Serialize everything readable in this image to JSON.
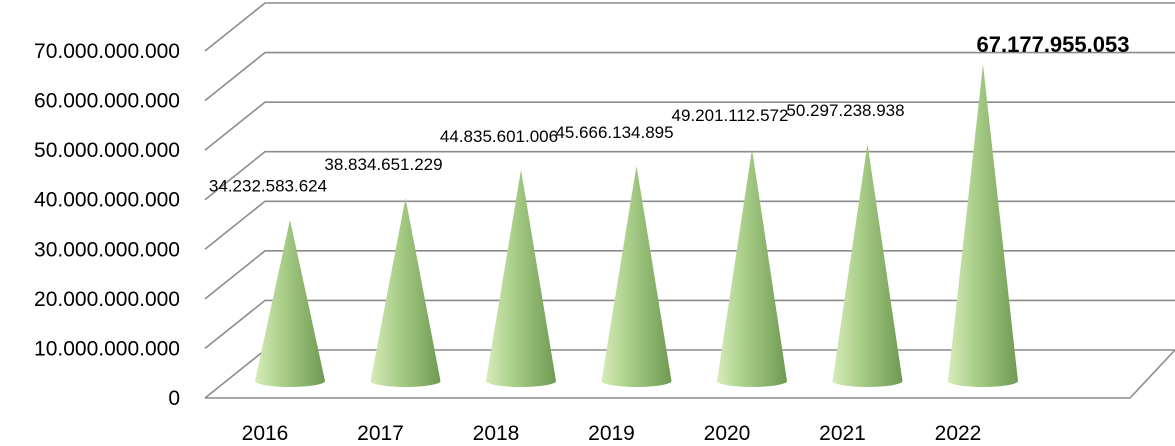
{
  "chart_data": {
    "type": "bar",
    "subtype": "3d-cone",
    "title": "",
    "xlabel": "",
    "ylabel": "",
    "categories": [
      "2016",
      "2017",
      "2018",
      "2019",
      "2020",
      "2021",
      "2022"
    ],
    "values": [
      34232583624,
      38834651229,
      44835601006,
      45666134895,
      49201112572,
      50297238938,
      67177955053
    ],
    "data_labels": [
      "34.232.583.624",
      "38.834.651.229",
      "44.835.601.006",
      "45.666.134.895",
      "49.201.112.572",
      "50.297.238.938",
      "67.177.955.053"
    ],
    "highlight_index": 6,
    "ylim": [
      0,
      70000000000
    ],
    "yticks": [
      0,
      10000000000,
      20000000000,
      30000000000,
      40000000000,
      50000000000,
      60000000000,
      70000000000
    ],
    "ytick_labels": [
      "0",
      "10.000.000.000",
      "20.000.000.000",
      "30.000.000.000",
      "40.000.000.000",
      "50.000.000.000",
      "60.000.000.000",
      "70.000.000.000"
    ],
    "grid": true,
    "legend": "none",
    "colors": {
      "cone_light": "#d6ecb8",
      "cone_mid": "#a6cc86",
      "cone_dark": "#6f9a52",
      "grid": "#8c8c8c"
    }
  }
}
